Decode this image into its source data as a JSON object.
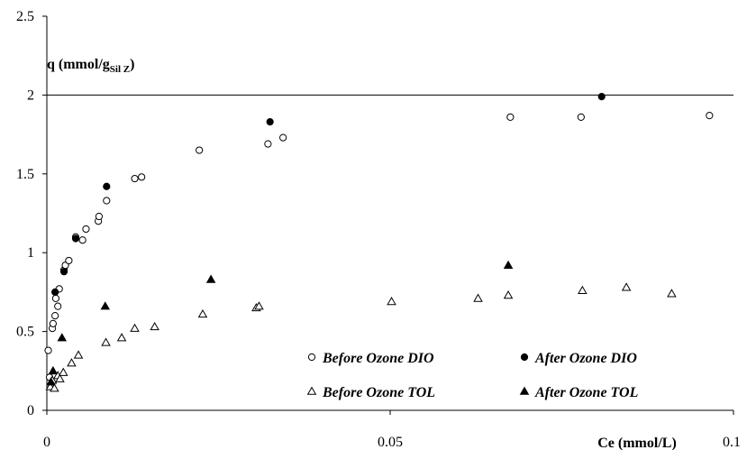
{
  "chart_data": {
    "type": "scatter",
    "xlim": [
      0,
      0.1
    ],
    "ylim": [
      0,
      2.5
    ],
    "x_ticks": [
      "0",
      "0.05",
      "0.1"
    ],
    "y_ticks": [
      "0",
      "0.5",
      "1",
      "1.5",
      "2",
      "2.5"
    ],
    "x_tick_values": [
      0,
      0.05,
      0.1
    ],
    "y_tick_values": [
      0,
      0.5,
      1,
      1.5,
      2,
      2.5
    ],
    "xlabel": "Ce (mmol/L)",
    "ylabel_main": "q (mmol/g",
    "ylabel_sub": "Sil Z",
    "ylabel_close": ")",
    "gridlines_y": [
      2
    ],
    "legend_placement": "bottom-right",
    "series": [
      {
        "name": "Before Ozone DIO",
        "marker": "circle-open",
        "points": [
          [
            0.0002,
            0.38
          ],
          [
            0.0004,
            0.21
          ],
          [
            0.0008,
            0.52
          ],
          [
            0.0009,
            0.55
          ],
          [
            0.0012,
            0.6
          ],
          [
            0.0013,
            0.71
          ],
          [
            0.0016,
            0.66
          ],
          [
            0.0018,
            0.77
          ],
          [
            0.0025,
            0.89
          ],
          [
            0.0027,
            0.92
          ],
          [
            0.0032,
            0.95
          ],
          [
            0.0042,
            1.1
          ],
          [
            0.0052,
            1.08
          ],
          [
            0.0057,
            1.15
          ],
          [
            0.0075,
            1.2
          ],
          [
            0.0076,
            1.23
          ],
          [
            0.0087,
            1.33
          ],
          [
            0.0128,
            1.47
          ],
          [
            0.0138,
            1.48
          ],
          [
            0.0222,
            1.65
          ],
          [
            0.0322,
            1.69
          ],
          [
            0.0344,
            1.73
          ],
          [
            0.0675,
            1.86
          ],
          [
            0.0778,
            1.86
          ],
          [
            0.0965,
            1.87
          ]
        ]
      },
      {
        "name": "After Ozone DIO",
        "marker": "circle-filled",
        "points": [
          [
            0.0012,
            0.75
          ],
          [
            0.0025,
            0.88
          ],
          [
            0.0042,
            1.09
          ],
          [
            0.0087,
            1.42
          ],
          [
            0.0325,
            1.83
          ],
          [
            0.0808,
            1.99
          ]
        ]
      },
      {
        "name": "Before Ozone TOL",
        "marker": "triangle-open",
        "points": [
          [
            0.0005,
            0.15
          ],
          [
            0.0008,
            0.19
          ],
          [
            0.0011,
            0.14
          ],
          [
            0.0016,
            0.22
          ],
          [
            0.0019,
            0.2
          ],
          [
            0.0024,
            0.24
          ],
          [
            0.0036,
            0.3
          ],
          [
            0.0046,
            0.35
          ],
          [
            0.0086,
            0.43
          ],
          [
            0.0109,
            0.46
          ],
          [
            0.0128,
            0.52
          ],
          [
            0.0157,
            0.53
          ],
          [
            0.0227,
            0.61
          ],
          [
            0.0305,
            0.65
          ],
          [
            0.0309,
            0.66
          ],
          [
            0.0502,
            0.69
          ],
          [
            0.0628,
            0.71
          ],
          [
            0.0672,
            0.73
          ],
          [
            0.078,
            0.76
          ],
          [
            0.0844,
            0.78
          ],
          [
            0.091,
            0.74
          ]
        ]
      },
      {
        "name": "After Ozone TOL",
        "marker": "triangle-filled",
        "points": [
          [
            0.0006,
            0.18
          ],
          [
            0.0009,
            0.25
          ],
          [
            0.0022,
            0.46
          ],
          [
            0.0085,
            0.66
          ],
          [
            0.0239,
            0.83
          ],
          [
            0.0672,
            0.92
          ]
        ]
      }
    ]
  }
}
